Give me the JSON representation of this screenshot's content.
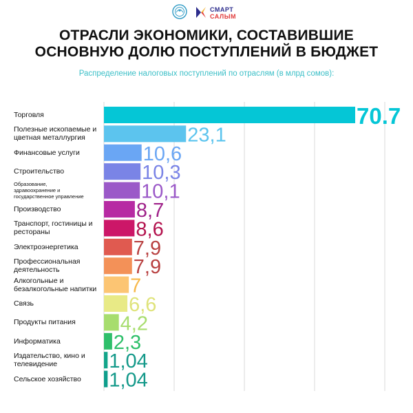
{
  "header": {
    "logo_line1": "СМАРТ",
    "logo_line2": "САЛЫМ"
  },
  "title_lines": [
    "ОТРАСЛИ ЭКОНОМИКИ, СОСТАВИВШИЕ",
    "ОСНОВНУЮ ДОЛЮ ПОСТУПЛЕНИЙ В БЮДЖЕТ"
  ],
  "colors": {
    "subtitle": "#3bbfc7",
    "grid": "#d8d8d8"
  },
  "chart_data": {
    "type": "bar",
    "orientation": "horizontal",
    "title": "ОТРАСЛИ ЭКОНОМИКИ, СОСТАВИВШИЕ ОСНОВНУЮ ДОЛЮ ПОСТУПЛЕНИЙ В БЮДЖЕТ",
    "subtitle": "Распределение налоговых поступлений по отраслям (в млрд сомов):",
    "xlim": [
      0,
      70.7
    ],
    "grid": true,
    "categories": [
      "Торговля",
      "Полезные ископаемые и цветная металлургия",
      "Финансовые услуги",
      "Строительство",
      "Образование, здравоохранение и государственное управление",
      "Производство",
      "Транспорт, гостиницы и рестораны",
      "Электроэнергетика",
      "Профессиональная деятельность",
      "Алкогольные и безалкогольные напитки",
      "Связь",
      "Продукты питания",
      "Информатика",
      "Издательство, кино и телевидение",
      "Сельское хозяйство"
    ],
    "category_label_lines": [
      [
        "Торговля"
      ],
      [
        "Полезные ископаемые и",
        "цветная металлургия"
      ],
      [
        "Финансовые услуги"
      ],
      [
        "Строительство"
      ],
      [
        "Образование,",
        "здравоохранение и",
        "государственное управление"
      ],
      [
        "Производство"
      ],
      [
        "Транспорт, гостиницы и",
        "рестораны"
      ],
      [
        "Электроэнергетика"
      ],
      [
        "Профессиональная",
        "деятельность"
      ],
      [
        "Алкогольные и",
        "безалкогольные напитки"
      ],
      [
        "Связь"
      ],
      [
        "Продукты питания"
      ],
      [
        "Информатика"
      ],
      [
        "Издательство, кино и",
        "телевидение"
      ],
      [
        "Сельское хозяйство"
      ]
    ],
    "values": [
      70.7,
      23.1,
      10.6,
      10.3,
      10.1,
      8.7,
      8.6,
      7.9,
      7.9,
      7,
      6.6,
      4.2,
      2.3,
      1.04,
      1.04
    ],
    "value_labels": [
      "70.7",
      "23,1",
      "10,6",
      "10,3",
      "10,1",
      "8,7",
      "8,6",
      "7,9",
      "7,9",
      "7",
      "6,6",
      "4,2",
      "2,3",
      "1,04",
      "1,04"
    ],
    "bar_colors": [
      "#05c6d6",
      "#5cc4ee",
      "#6aa6f4",
      "#7a84e6",
      "#9b59c8",
      "#b72aa3",
      "#cc1768",
      "#e05a50",
      "#f39158",
      "#fcc573",
      "#e8ea86",
      "#a7dd6e",
      "#2ebf6a",
      "#13a58a",
      "#0e9e8c"
    ],
    "label_colors": [
      "#05c6d6",
      "#5cc4ee",
      "#6aa6f4",
      "#7a84e6",
      "#9b59c8",
      "#9e1f88",
      "#b3134e",
      "#b84040",
      "#b84040",
      "#f7b84a",
      "#dfe37a",
      "#a7dd6e",
      "#2ebf6a",
      "#14998a",
      "#14998a"
    ]
  }
}
